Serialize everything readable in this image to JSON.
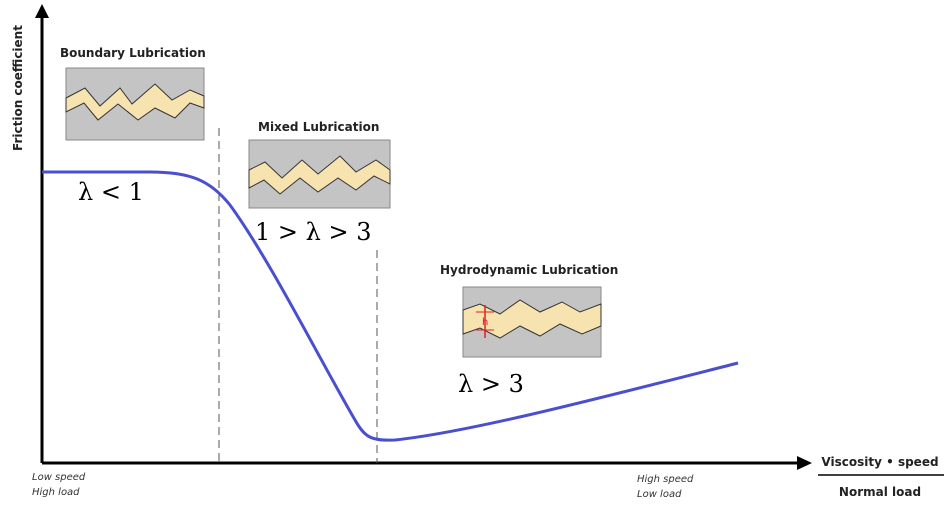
{
  "y_axis": {
    "label": "Friction coefficient"
  },
  "x_axis": {
    "numerator": "Viscosity • speed",
    "denominator": "Normal load"
  },
  "x_notes": {
    "left": [
      "Low speed",
      "High load"
    ],
    "right": [
      "High speed",
      "Low load"
    ]
  },
  "regimes": [
    {
      "title": "Boundary Lubrication",
      "condition": "λ < 1"
    },
    {
      "title": "Mixed Lubrication",
      "condition": "1 > λ > 3"
    },
    {
      "title": "Hydrodynamic Lubrication",
      "condition": "λ > 3",
      "film_label": "h"
    }
  ]
}
